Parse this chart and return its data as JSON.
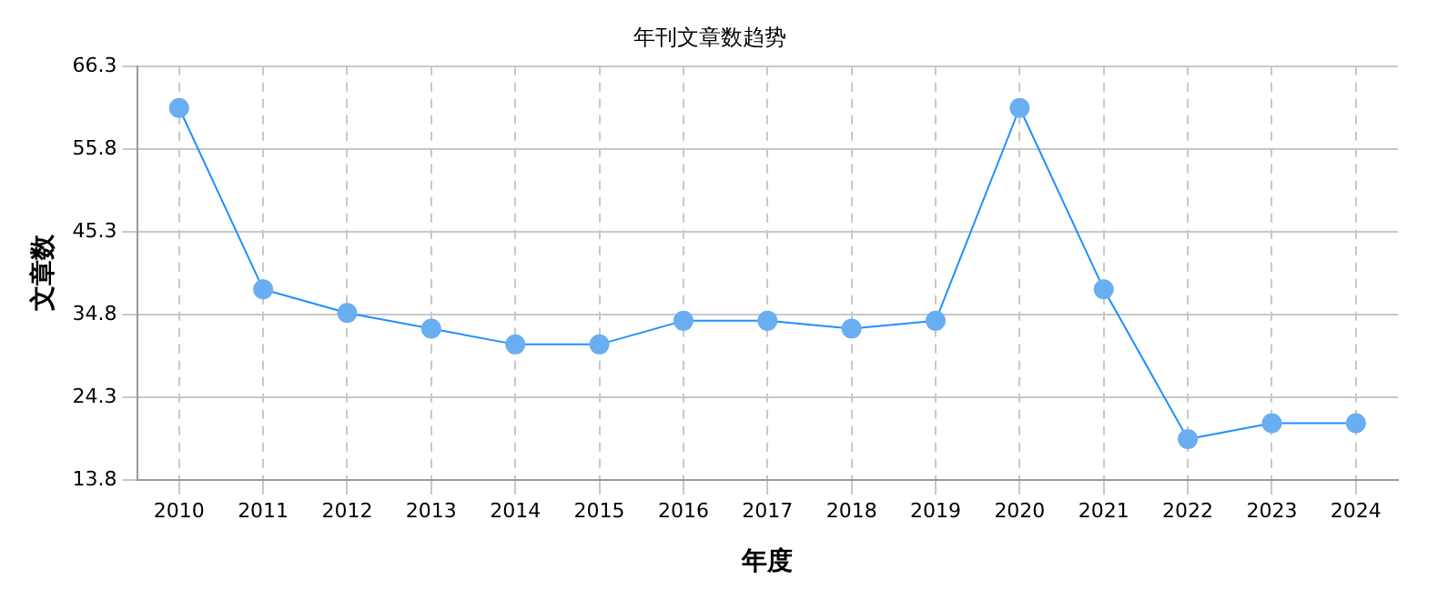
{
  "chart_data": {
    "type": "line",
    "title": "年刊文章数趋势",
    "xlabel": "年度",
    "ylabel": "文章数",
    "categories": [
      "2010",
      "2011",
      "2012",
      "2013",
      "2014",
      "2015",
      "2016",
      "2017",
      "2018",
      "2019",
      "2020",
      "2021",
      "2022",
      "2023",
      "2024"
    ],
    "series": [
      {
        "color": "#1e90ff",
        "values": [
          61,
          38,
          35,
          33,
          31,
          31,
          34,
          34,
          33,
          34,
          61,
          38,
          19,
          21,
          21
        ]
      }
    ],
    "ylim": [
      13.8,
      66.3
    ],
    "yticks": [
      13.8,
      24.3,
      34.8,
      45.3,
      55.8,
      66.3
    ],
    "grid": true,
    "marker": "circle",
    "line_style": "solid",
    "legend": false
  }
}
